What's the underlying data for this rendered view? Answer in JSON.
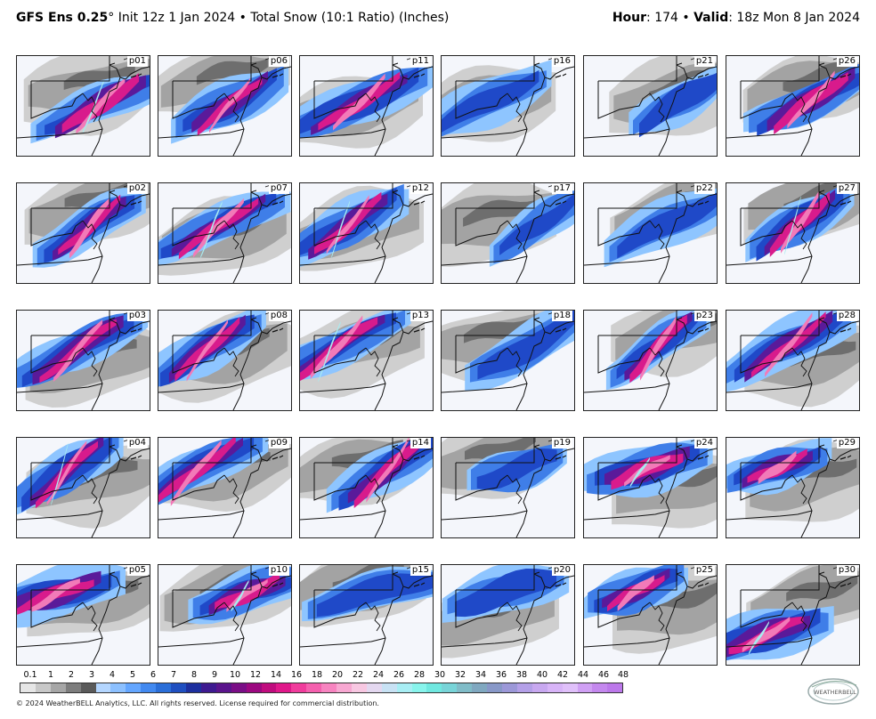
{
  "header": {
    "model": "GFS Ens 0.25",
    "degree": "°",
    "init": " Init 12z 1 Jan 2024",
    "sep": " • ",
    "product": "Total Snow (10:1 Ratio) (Inches)",
    "hour_label": "Hour",
    "hour_value": ": 174",
    "valid_label": "Valid",
    "valid_value": ": 18z Mon 8 Jan 2024"
  },
  "members": [
    [
      "p01",
      "p06",
      "p11",
      "p16",
      "p21",
      "p26"
    ],
    [
      "p02",
      "p07",
      "p12",
      "p17",
      "p22",
      "p27"
    ],
    [
      "p03",
      "p08",
      "p13",
      "p18",
      "p23",
      "p28"
    ],
    [
      "p04",
      "p09",
      "p14",
      "p19",
      "p24",
      "p29"
    ],
    [
      "p05",
      "p10",
      "p15",
      "p20",
      "p25",
      "p30"
    ]
  ],
  "legend": {
    "ticks": [
      "0.1",
      "1",
      "2",
      "3",
      "4",
      "5",
      "6",
      "7",
      "8",
      "9",
      "10",
      "12",
      "14",
      "16",
      "18",
      "20",
      "22",
      "24",
      "26",
      "28",
      "30",
      "32",
      "34",
      "36",
      "38",
      "40",
      "42",
      "44",
      "46",
      "48"
    ],
    "colors": [
      "#e6e6e6",
      "#c8c8c8",
      "#a6a6a6",
      "#7d7d7d",
      "#5a5a5a",
      "#b4d6ff",
      "#8cc0ff",
      "#64a6ff",
      "#4289f0",
      "#2a6ed8",
      "#1f4fc0",
      "#1d2f9e",
      "#3e1a90",
      "#5a148c",
      "#7a0e86",
      "#9c0880",
      "#c00c7e",
      "#e0188a",
      "#f03c9c",
      "#f560ae",
      "#f784c0",
      "#f8a8d2",
      "#f8c8e2",
      "#e4d8f0",
      "#c8e2f4",
      "#a8eef4",
      "#88f4ec",
      "#70e8e0",
      "#78d4d8",
      "#80bcc8",
      "#80a8c0",
      "#8898c8",
      "#9c98d8",
      "#b4a0e8",
      "#c8a8f0",
      "#d8b4f8",
      "#e0c0fa",
      "#d0a0f4",
      "#c488ee",
      "#bc78ea"
    ]
  },
  "copyright": "© 2024 WeatherBELL Analytics, LLC. All rights reserved. License required for commercial distribution.",
  "logo_text": "WEATHERBELL",
  "palette": {
    "gray_light": "#cfcfcf",
    "gray_mid": "#a3a3a3",
    "gray_dark": "#6e6e6e",
    "blue_light": "#8ec5ff",
    "blue": "#3f7ee8",
    "blue_dark": "#1f49c8",
    "purple": "#5a1a9a",
    "magenta": "#d81b8c",
    "pink": "#f27ab8",
    "pink_light": "#f7b4d8",
    "cyan": "#a8ecf0"
  }
}
